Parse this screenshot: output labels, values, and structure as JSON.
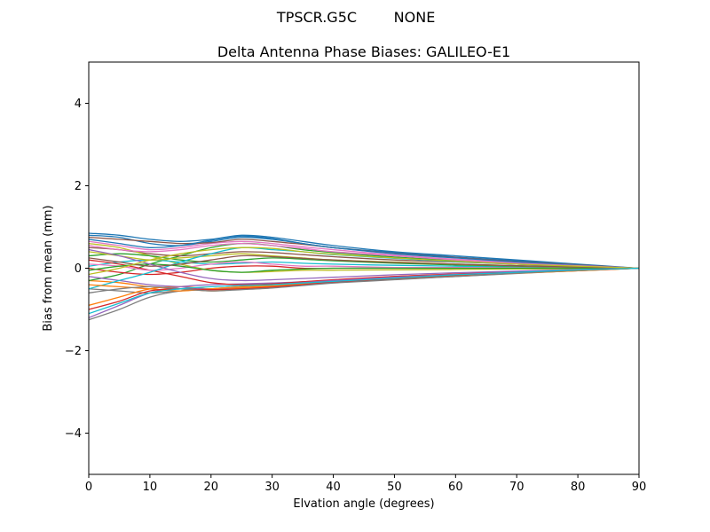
{
  "figure": {
    "suptitle": {
      "antenna": "TPSCR.G5C",
      "radome": "NONE"
    },
    "title": "Delta Antenna Phase Biases: GALILEO-E1",
    "xlabel": "Elvation angle (degrees)",
    "ylabel": "Bias from mean (mm)"
  },
  "chart_data": {
    "type": "line",
    "title": "Delta Antenna Phase Biases: GALILEO-E1",
    "suptitle": "TPSCR.G5C        NONE",
    "xlabel": "Elvation angle (degrees)",
    "ylabel": "Bias from mean (mm)",
    "xlim": [
      0,
      90
    ],
    "ylim": [
      -5,
      5
    ],
    "xticks": [
      0,
      10,
      20,
      30,
      40,
      50,
      60,
      70,
      80,
      90
    ],
    "yticks": [
      -4,
      -2,
      0,
      2,
      4
    ],
    "grid": false,
    "legend": false,
    "description": "Approximately 30 unlabeled colored bias curves spreading between -1.25 and +0.85 mm at 0 degrees, bulging to about +0.8 / -0.6 mm near 20-27 degrees, then converging to exactly 0 mm at 90 degrees",
    "x": [
      0,
      5,
      10,
      15,
      20,
      25,
      30,
      35,
      40,
      50,
      60,
      70,
      80,
      90
    ],
    "series": [
      {
        "values": [
          0.85,
          0.8,
          0.7,
          0.65,
          0.7,
          0.8,
          0.75,
          0.65,
          0.55,
          0.4,
          0.3,
          0.2,
          0.1,
          0
        ]
      },
      {
        "values": [
          -0.3,
          -0.35,
          -0.45,
          -0.5,
          -0.55,
          -0.5,
          -0.42,
          -0.36,
          -0.3,
          -0.2,
          -0.14,
          -0.09,
          -0.04,
          0
        ]
      },
      {
        "values": [
          -0.3,
          -0.15,
          0.1,
          0.3,
          0.5,
          0.6,
          0.55,
          0.45,
          0.38,
          0.27,
          0.18,
          0.1,
          0.05,
          0
        ]
      },
      {
        "values": [
          0,
          -0.1,
          -0.15,
          -0.1,
          0,
          0.05,
          0.05,
          0,
          0,
          0,
          0,
          0,
          0,
          0
        ]
      },
      {
        "values": [
          -1.2,
          -0.9,
          -0.6,
          -0.45,
          -0.4,
          -0.38,
          -0.36,
          -0.33,
          -0.3,
          -0.22,
          -0.15,
          -0.09,
          -0.04,
          0
        ]
      },
      {
        "values": [
          0.5,
          0.45,
          0.35,
          0.3,
          0.35,
          0.4,
          0.38,
          0.33,
          0.28,
          0.2,
          0.15,
          0.1,
          0.05,
          0
        ]
      },
      {
        "values": [
          0.65,
          0.55,
          0.45,
          0.5,
          0.6,
          0.65,
          0.6,
          0.52,
          0.45,
          0.32,
          0.22,
          0.14,
          0.07,
          0
        ]
      },
      {
        "values": [
          -0.5,
          -0.55,
          -0.6,
          -0.55,
          -0.5,
          -0.48,
          -0.45,
          -0.4,
          -0.35,
          -0.27,
          -0.2,
          -0.13,
          -0.06,
          0
        ]
      },
      {
        "values": [
          0.6,
          0.5,
          0.3,
          0.1,
          -0.05,
          -0.1,
          -0.08,
          -0.05,
          -0.05,
          -0.04,
          -0.03,
          -0.02,
          -0.01,
          0
        ]
      },
      {
        "values": [
          0.05,
          0.15,
          0.2,
          0.15,
          0.1,
          0.12,
          0.15,
          0.12,
          0.1,
          0.07,
          0.05,
          0.03,
          0.01,
          0
        ]
      },
      {
        "values": [
          0.8,
          0.75,
          0.6,
          0.55,
          0.65,
          0.75,
          0.7,
          0.6,
          0.5,
          0.38,
          0.27,
          0.18,
          0.08,
          0
        ]
      },
      {
        "values": [
          -0.9,
          -0.7,
          -0.5,
          -0.45,
          -0.5,
          -0.48,
          -0.44,
          -0.4,
          -0.35,
          -0.26,
          -0.18,
          -0.12,
          -0.06,
          0
        ]
      },
      {
        "values": [
          0.3,
          0.35,
          0.3,
          0.2,
          0.15,
          0.2,
          0.25,
          0.22,
          0.18,
          0.12,
          0.08,
          0.05,
          0.02,
          0
        ]
      },
      {
        "values": [
          0.2,
          0.1,
          -0.05,
          -0.2,
          -0.35,
          -0.4,
          -0.38,
          -0.33,
          -0.28,
          -0.2,
          -0.14,
          -0.08,
          -0.04,
          0
        ]
      },
      {
        "values": [
          -0.2,
          -0.3,
          -0.4,
          -0.45,
          -0.5,
          -0.45,
          -0.4,
          -0.35,
          -0.3,
          -0.22,
          -0.15,
          -0.1,
          -0.05,
          0
        ]
      },
      {
        "values": [
          0.75,
          0.7,
          0.65,
          0.6,
          0.62,
          0.7,
          0.65,
          0.58,
          0.5,
          0.36,
          0.26,
          0.16,
          0.08,
          0
        ]
      },
      {
        "values": [
          0.1,
          0.05,
          -0.05,
          0,
          0.1,
          0.15,
          0.1,
          0.05,
          0.05,
          0.02,
          0.02,
          0.01,
          0,
          0
        ]
      },
      {
        "values": [
          -1.25,
          -1.0,
          -0.7,
          -0.55,
          -0.5,
          -0.45,
          -0.42,
          -0.38,
          -0.33,
          -0.25,
          -0.17,
          -0.1,
          -0.05,
          0
        ]
      },
      {
        "values": [
          0.4,
          0.3,
          0.2,
          0.25,
          0.3,
          0.35,
          0.3,
          0.25,
          0.2,
          0.15,
          0.1,
          0.06,
          0.03,
          0
        ]
      },
      {
        "values": [
          -0.5,
          -0.3,
          -0.1,
          0.15,
          0.35,
          0.5,
          0.45,
          0.4,
          0.33,
          0.24,
          0.16,
          0.1,
          0.04,
          0
        ]
      },
      {
        "values": [
          0.7,
          0.6,
          0.5,
          0.55,
          0.68,
          0.78,
          0.72,
          0.6,
          0.5,
          0.35,
          0.25,
          0.15,
          0.07,
          0
        ]
      },
      {
        "values": [
          -0.4,
          -0.45,
          -0.5,
          -0.55,
          -0.5,
          -0.45,
          -0.42,
          -0.38,
          -0.33,
          -0.25,
          -0.18,
          -0.12,
          -0.06,
          0
        ]
      },
      {
        "values": [
          -0.05,
          0.05,
          0.1,
          0.05,
          -0.05,
          -0.1,
          -0.05,
          -0.02,
          0,
          0,
          0,
          0,
          0,
          0
        ]
      },
      {
        "values": [
          -1.0,
          -0.8,
          -0.55,
          -0.5,
          -0.52,
          -0.5,
          -0.46,
          -0.4,
          -0.34,
          -0.25,
          -0.17,
          -0.1,
          -0.05,
          0
        ]
      },
      {
        "values": [
          0.45,
          0.3,
          0.1,
          -0.1,
          -0.25,
          -0.3,
          -0.28,
          -0.25,
          -0.22,
          -0.16,
          -0.11,
          -0.07,
          -0.03,
          0
        ]
      },
      {
        "values": [
          0.25,
          0.15,
          0.05,
          0.1,
          0.2,
          0.3,
          0.28,
          0.24,
          0.2,
          0.14,
          0.1,
          0.06,
          0.03,
          0
        ]
      },
      {
        "values": [
          0.55,
          0.45,
          0.4,
          0.45,
          0.55,
          0.6,
          0.55,
          0.48,
          0.4,
          0.3,
          0.2,
          0.12,
          0.06,
          0
        ]
      },
      {
        "values": [
          -0.6,
          -0.5,
          -0.45,
          -0.5,
          -0.55,
          -0.52,
          -0.48,
          -0.42,
          -0.36,
          -0.28,
          -0.2,
          -0.12,
          -0.05,
          0
        ]
      },
      {
        "values": [
          -0.15,
          0,
          0.2,
          0.35,
          0.45,
          0.5,
          0.48,
          0.4,
          0.34,
          0.25,
          0.17,
          0.1,
          0.05,
          0
        ]
      },
      {
        "values": [
          -1.1,
          -0.85,
          -0.6,
          -0.5,
          -0.45,
          -0.42,
          -0.4,
          -0.36,
          -0.32,
          -0.24,
          -0.16,
          -0.1,
          -0.04,
          0
        ]
      }
    ],
    "palette": [
      "#1f77b4",
      "#ff7f0e",
      "#2ca02c",
      "#d62728",
      "#9467bd",
      "#8c564b",
      "#e377c2",
      "#7f7f7f",
      "#bcbd22",
      "#17becf"
    ],
    "axis_color": "#000000"
  }
}
